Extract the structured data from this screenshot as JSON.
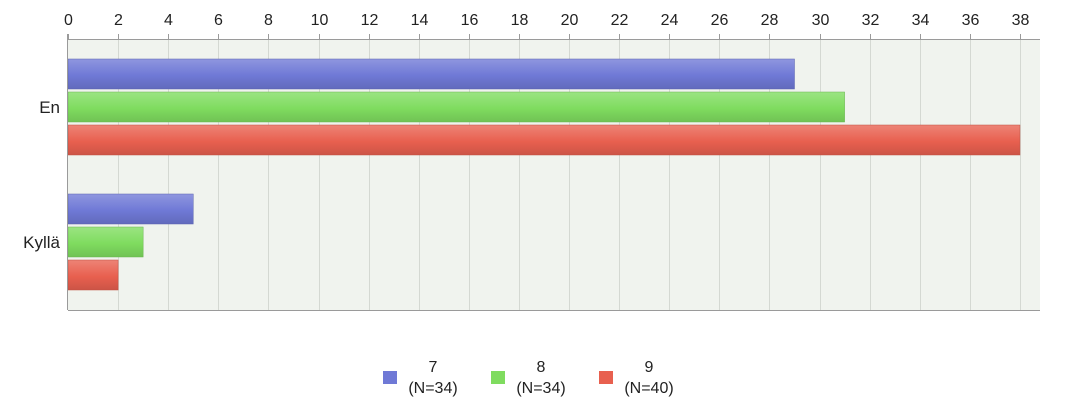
{
  "chart_data": {
    "type": "bar",
    "orientation": "horizontal",
    "categories": [
      "En",
      "Kyllä"
    ],
    "series": [
      {
        "name": "7",
        "sublabel": "(N=34)",
        "values": [
          29,
          5
        ],
        "color": "#6f79d6"
      },
      {
        "name": "8",
        "sublabel": "(N=34)",
        "values": [
          31,
          3
        ],
        "color": "#7fdc5f"
      },
      {
        "name": "9",
        "sublabel": "(N=40)",
        "values": [
          38,
          2
        ],
        "color": "#e8604f"
      }
    ],
    "x_ticks": [
      0,
      2,
      4,
      6,
      8,
      10,
      12,
      14,
      16,
      18,
      20,
      22,
      24,
      26,
      28,
      30,
      32,
      34,
      36,
      38
    ],
    "xlim": [
      0,
      38.8
    ],
    "x_axis_position": "top",
    "grid": true,
    "legend_position": "bottom-center",
    "plot_background": "#f0f3ee",
    "grid_color": "#d4d8d2"
  }
}
